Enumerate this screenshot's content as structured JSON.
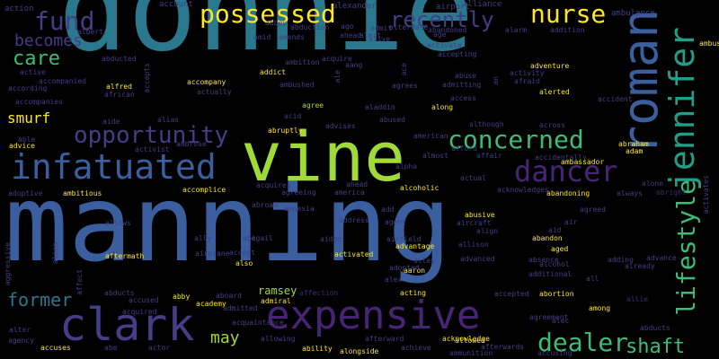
{
  "background": "#000000",
  "palette": {
    "teal": "#2a788e",
    "blue": "#3b5f9e",
    "indigo": "#433e85",
    "purple": "#482475",
    "green": "#3dbc74",
    "lime": "#a0da39",
    "yellow": "#fde725",
    "aqua": "#1f9e89"
  },
  "words": [
    {
      "text": "donnie"
    },
    {
      "text": "manning"
    },
    {
      "text": "vine"
    },
    {
      "text": "expensive"
    },
    {
      "text": "clark"
    },
    {
      "text": "infatuated"
    },
    {
      "text": "possessed"
    },
    {
      "text": "nurse"
    },
    {
      "text": "roman"
    },
    {
      "text": "jennifer"
    },
    {
      "text": "lifestyle"
    },
    {
      "text": "dancer"
    },
    {
      "text": "concerned"
    },
    {
      "text": "opportunity"
    },
    {
      "text": "fund"
    },
    {
      "text": "recently"
    },
    {
      "text": "dealer"
    },
    {
      "text": "shaft"
    },
    {
      "text": "care"
    },
    {
      "text": "becomes"
    },
    {
      "text": "former"
    },
    {
      "text": "smurf"
    },
    {
      "text": "may"
    },
    {
      "text": "ramsey"
    },
    {
      "text": "alexander"
    },
    {
      "text": "alliance"
    },
    {
      "text": "airport"
    },
    {
      "text": "ambulance"
    },
    {
      "text": "account"
    },
    {
      "text": "action"
    },
    {
      "text": "albert"
    },
    {
      "text": "abbey"
    },
    {
      "text": "abduction"
    },
    {
      "text": "abandoned"
    },
    {
      "text": "alternate"
    },
    {
      "text": "addition"
    },
    {
      "text": "admit"
    },
    {
      "text": "amid"
    },
    {
      "text": "amends"
    },
    {
      "text": "alarm"
    },
    {
      "text": "abducted"
    },
    {
      "text": "adventure"
    },
    {
      "text": "accepts"
    },
    {
      "text": "ambition"
    },
    {
      "text": "acquire"
    },
    {
      "text": "activate"
    },
    {
      "text": "accepting"
    },
    {
      "text": "active"
    },
    {
      "text": "addict"
    },
    {
      "text": "aang"
    },
    {
      "text": "alfred"
    },
    {
      "text": "accompany"
    },
    {
      "text": "abuse"
    },
    {
      "text": "activity"
    },
    {
      "text": "afraid"
    },
    {
      "text": "accompanied"
    },
    {
      "text": "african"
    },
    {
      "text": "actually"
    },
    {
      "text": "ambushed"
    },
    {
      "text": "agrees"
    },
    {
      "text": "admitting"
    },
    {
      "text": "alerted"
    },
    {
      "text": "ambush"
    },
    {
      "text": "according"
    },
    {
      "text": "accompanies"
    },
    {
      "text": "agree"
    },
    {
      "text": "aladdin"
    },
    {
      "text": "along"
    },
    {
      "text": "access"
    },
    {
      "text": "accident"
    },
    {
      "text": "aide"
    },
    {
      "text": "alias"
    },
    {
      "text": "acid"
    },
    {
      "text": "advises"
    },
    {
      "text": "abused"
    },
    {
      "text": "although"
    },
    {
      "text": "across"
    },
    {
      "text": "able"
    },
    {
      "text": "advice"
    },
    {
      "text": "activist"
    },
    {
      "text": "ambrose"
    },
    {
      "text": "abruptly"
    },
    {
      "text": "american"
    },
    {
      "text": "affair"
    },
    {
      "text": "accidentally"
    },
    {
      "text": "abraham"
    },
    {
      "text": "adam"
    },
    {
      "text": "almost"
    },
    {
      "text": "afford"
    },
    {
      "text": "ambassador"
    },
    {
      "text": "alpha"
    },
    {
      "text": "accomplice"
    },
    {
      "text": "acquires"
    },
    {
      "text": "actual"
    },
    {
      "text": "acknowledges"
    },
    {
      "text": "abandoning"
    },
    {
      "text": "alone"
    },
    {
      "text": "adoptive"
    },
    {
      "text": "ambitious"
    },
    {
      "text": "agreeing"
    },
    {
      "text": "america"
    },
    {
      "text": "alcoholic"
    },
    {
      "text": "always"
    },
    {
      "text": "abright"
    },
    {
      "text": "activates"
    },
    {
      "text": "amnesia"
    },
    {
      "text": "add"
    },
    {
      "text": "abusive"
    },
    {
      "text": "aircraft"
    },
    {
      "text": "agreed"
    },
    {
      "text": "allows"
    },
    {
      "text": "address"
    },
    {
      "text": "agent"
    },
    {
      "text": "align"
    },
    {
      "text": "aid"
    },
    {
      "text": "air"
    },
    {
      "text": "aftermath"
    },
    {
      "text": "ally"
    },
    {
      "text": "abigail"
    },
    {
      "text": "aided"
    },
    {
      "text": "airfield"
    },
    {
      "text": "advantage"
    },
    {
      "text": "allison"
    },
    {
      "text": "aged"
    },
    {
      "text": "abandon"
    },
    {
      "text": "aggressive"
    },
    {
      "text": "alien"
    },
    {
      "text": "airplane"
    },
    {
      "text": "accept"
    },
    {
      "text": "activated"
    },
    {
      "text": "advanced"
    },
    {
      "text": "absence"
    },
    {
      "text": "adding"
    },
    {
      "text": "advance"
    },
    {
      "text": "also"
    },
    {
      "text": "alley"
    },
    {
      "text": "alcohol"
    },
    {
      "text": "additional"
    },
    {
      "text": "already"
    },
    {
      "text": "affect"
    },
    {
      "text": "alex"
    },
    {
      "text": "aaron"
    },
    {
      "text": "adopted"
    },
    {
      "text": "abducts"
    },
    {
      "text": "accused"
    },
    {
      "text": "abby"
    },
    {
      "text": "aboard"
    },
    {
      "text": "affection"
    },
    {
      "text": "acting"
    },
    {
      "text": "accepted"
    },
    {
      "text": "abortion"
    },
    {
      "text": "allie"
    },
    {
      "text": "academy"
    },
    {
      "text": "admitted"
    },
    {
      "text": "admiral"
    },
    {
      "text": "among"
    },
    {
      "text": "alec"
    },
    {
      "text": "agreement"
    },
    {
      "text": "abducts"
    },
    {
      "text": "acquired"
    },
    {
      "text": "alter"
    },
    {
      "text": "agency"
    },
    {
      "text": "accuses"
    },
    {
      "text": "acquaintance"
    },
    {
      "text": "actor"
    },
    {
      "text": "allowing"
    },
    {
      "text": "ability"
    },
    {
      "text": "alongside"
    },
    {
      "text": "afterward"
    },
    {
      "text": "acknowledge"
    },
    {
      "text": "achieve"
    },
    {
      "text": "allowed"
    },
    {
      "text": "ammunition"
    },
    {
      "text": "afterwards"
    },
    {
      "text": "accusing"
    },
    {
      "text": "abe"
    },
    {
      "text": "ago"
    },
    {
      "text": "ahead"
    },
    {
      "text": "alive"
    },
    {
      "text": "ale"
    },
    {
      "text": "alert"
    },
    {
      "text": "ace"
    },
    {
      "text": "abroad"
    },
    {
      "text": "ahead"
    },
    {
      "text": "age"
    },
    {
      "text": "an"
    },
    {
      "text": "all"
    },
    {
      "text": "abe"
    }
  ]
}
